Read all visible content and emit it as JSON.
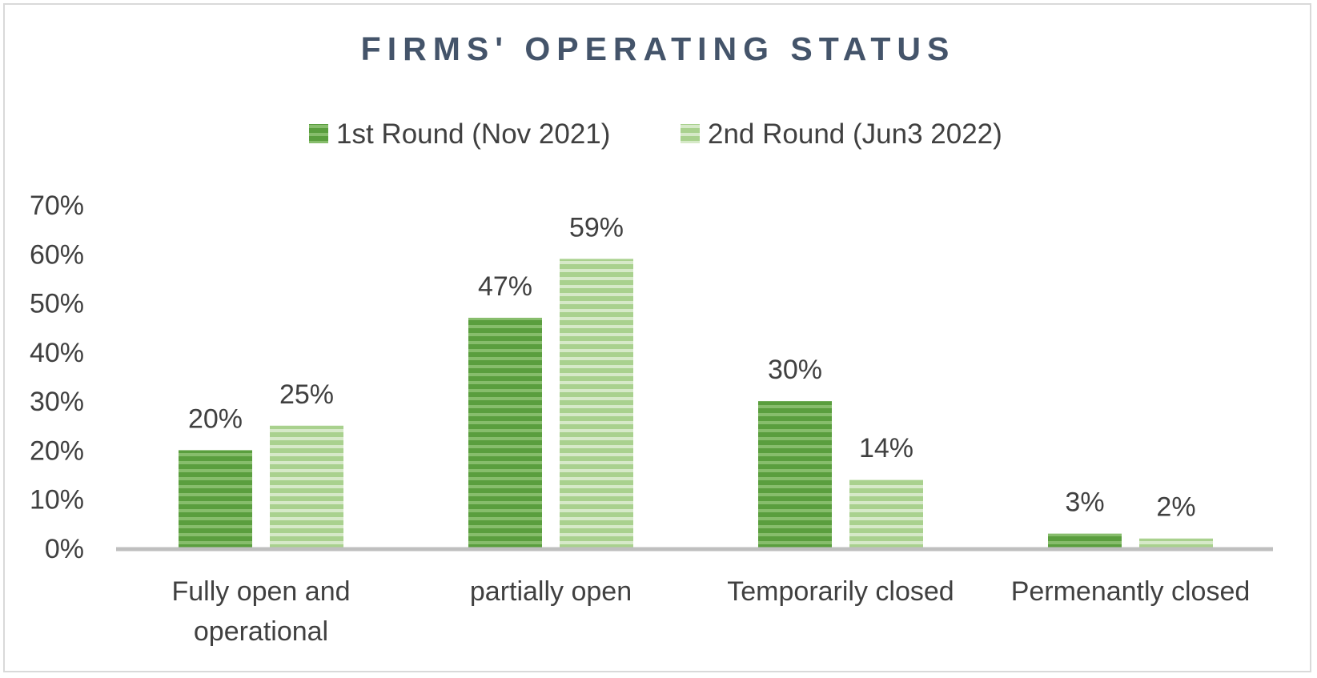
{
  "chart_data": {
    "type": "bar",
    "title": "FIRMS' OPERATING STATUS",
    "categories": [
      [
        "Fully open and",
        "operational"
      ],
      [
        "partially open"
      ],
      [
        "Temporarily closed"
      ],
      [
        "Permenantly closed"
      ]
    ],
    "series": [
      {
        "name": "1st Round (Nov 2021)",
        "values": [
          20,
          47,
          30,
          3
        ],
        "labels": [
          "20%",
          "47%",
          "30%",
          "3%"
        ],
        "color": "#5a9e3e",
        "stripe": "#87bd6c"
      },
      {
        "name": "2nd Round (Jun3 2022)",
        "values": [
          25,
          59,
          14,
          2
        ],
        "labels": [
          "25%",
          "59%",
          "14%",
          "2%"
        ],
        "color": "#a9d18e",
        "stripe": "#d6e9c8"
      }
    ],
    "ylim": [
      0,
      70
    ],
    "yticks": [
      0,
      10,
      20,
      30,
      40,
      50,
      60,
      70
    ],
    "ytick_labels": [
      "0%",
      "10%",
      "20%",
      "30%",
      "40%",
      "50%",
      "60%",
      "70%"
    ],
    "xlabel": "",
    "ylabel": "",
    "grid": false,
    "legend_position": "top"
  }
}
